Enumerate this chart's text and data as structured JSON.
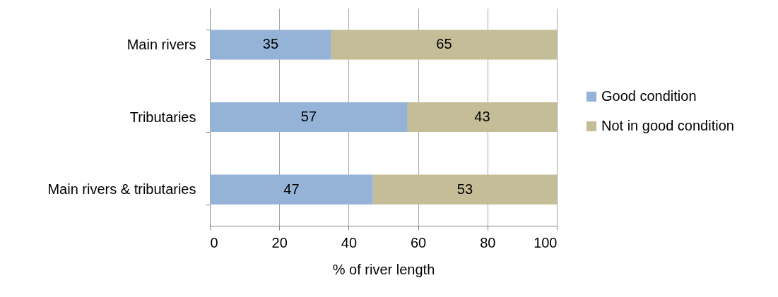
{
  "chart_data": {
    "type": "bar",
    "orientation": "horizontal",
    "stacked": true,
    "xlabel": "% of river length",
    "categories": [
      "Main rivers",
      "Tributaries",
      "Main rivers & tributaries"
    ],
    "series": [
      {
        "name": "Good condition",
        "color": "#95b3d7",
        "values": [
          35,
          57,
          47
        ]
      },
      {
        "name": "Not in good condition",
        "color": "#c4bd97",
        "values": [
          65,
          43,
          53
        ]
      }
    ],
    "xlim": [
      0,
      100
    ],
    "xticks": [
      0,
      20,
      40,
      60,
      80,
      100
    ],
    "grid": "x",
    "legend": "right",
    "data_labels": true
  }
}
